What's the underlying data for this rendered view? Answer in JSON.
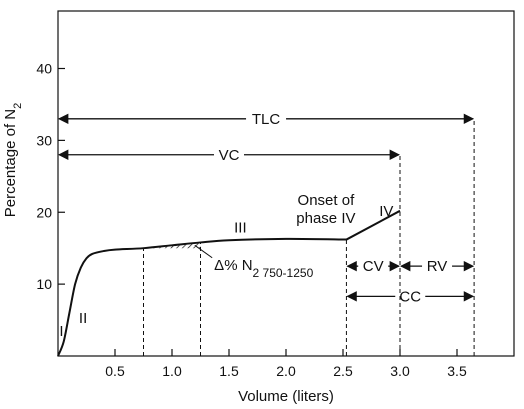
{
  "chart_data": {
    "type": "line",
    "title": "",
    "xlabel": "Volume (liters)",
    "ylabel_main": "Percentage of N",
    "ylabel_sub": "2",
    "xlim": [
      0,
      4.0
    ],
    "ylim": [
      0,
      48
    ],
    "x_ticks": [
      {
        "value": 0.5,
        "label": "0.5"
      },
      {
        "value": 1.0,
        "label": "1.0"
      },
      {
        "value": 1.5,
        "label": "1.5"
      },
      {
        "value": 2.0,
        "label": "2.0"
      },
      {
        "value": 2.5,
        "label": "2.5"
      },
      {
        "value": 3.0,
        "label": "3.0"
      },
      {
        "value": 3.5,
        "label": "3.5"
      }
    ],
    "y_ticks": [
      {
        "value": 10,
        "label": "10"
      },
      {
        "value": 20,
        "label": "20"
      },
      {
        "value": 30,
        "label": "30"
      },
      {
        "value": 40,
        "label": "40"
      }
    ],
    "series": [
      {
        "x": [
          0,
          0.05,
          0.1,
          0.15,
          0.2,
          0.25,
          0.3,
          0.4,
          0.5,
          0.75,
          1.0,
          1.25,
          1.5,
          2.0,
          2.53,
          3.0
        ],
        "y": [
          0,
          2,
          6,
          10,
          12.3,
          13.6,
          14.2,
          14.6,
          14.8,
          15.0,
          15.4,
          15.8,
          16.1,
          16.3,
          16.2,
          20.2
        ]
      }
    ],
    "shaded_region": {
      "x_start": 0.75,
      "x_end": 1.25
    },
    "dashed_verticals": [
      {
        "x": 0.75,
        "y_top": 15.0
      },
      {
        "x": 1.25,
        "y_top": 15.8
      },
      {
        "x": 2.53,
        "y_top": 16.2
      },
      {
        "x": 3.0,
        "y_top": 28.0
      },
      {
        "x": 3.65,
        "y_top": 33.0
      }
    ],
    "spans": [
      {
        "label": "TLC",
        "x_start": 0,
        "x_end": 3.65,
        "y": 33.0
      },
      {
        "label": "VC",
        "x_start": 0,
        "x_end": 3.0,
        "y": 28.0
      },
      {
        "label": "CV",
        "x_start": 2.53,
        "x_end": 3.0,
        "y": 12.5
      },
      {
        "label": "RV",
        "x_start": 3.0,
        "x_end": 3.65,
        "y": 12.5
      },
      {
        "label": "CC",
        "x_start": 2.53,
        "x_end": 3.65,
        "y": 8.3
      }
    ],
    "phase_labels": [
      {
        "label": "I",
        "x": 0.03,
        "y": 2.8
      },
      {
        "label": "II",
        "x": 0.22,
        "y": 4.6
      },
      {
        "label": "III",
        "x": 1.6,
        "y": 17.2
      },
      {
        "label": "IV",
        "x": 2.88,
        "y": 19.5
      }
    ],
    "annotations": [
      {
        "id": "onset",
        "lines": [
          "Onset of",
          "phase IV"
        ],
        "x": 2.35,
        "y": 21.0
      },
      {
        "id": "delta",
        "main": "Δ% N",
        "sub": "2 750-1250",
        "x": 1.37,
        "y": 12.0
      }
    ]
  }
}
